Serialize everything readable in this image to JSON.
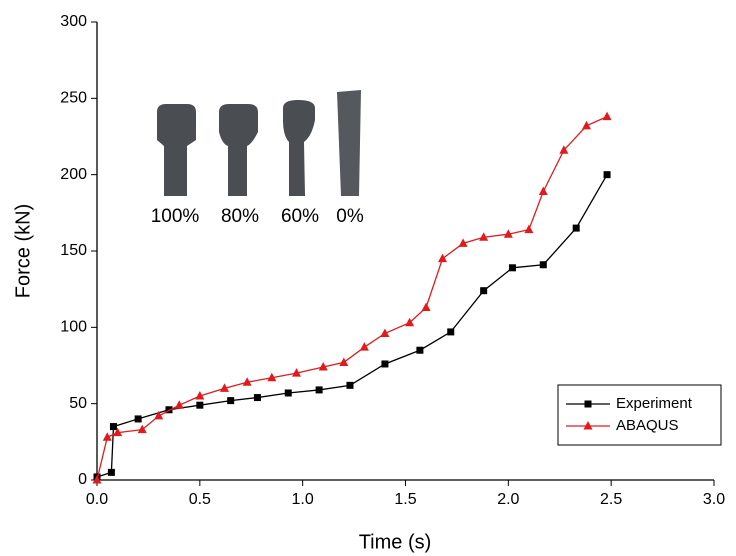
{
  "chart_data": {
    "type": "line",
    "x_label": "Time (s)",
    "y_label": "Force (kN)",
    "xlim": [
      0,
      3
    ],
    "ylim": [
      0,
      300
    ],
    "xticks": [
      {
        "value": 0,
        "label": "0.0"
      },
      {
        "value": 0.5,
        "label": "0.5"
      },
      {
        "value": 1,
        "label": "1.0"
      },
      {
        "value": 1.5,
        "label": "1.5"
      },
      {
        "value": 2,
        "label": "2.0"
      },
      {
        "value": 2.5,
        "label": "2.5"
      },
      {
        "value": 3,
        "label": "3.0"
      }
    ],
    "yticks": [
      0,
      50,
      100,
      150,
      200,
      250,
      300
    ],
    "grid": false,
    "legend": "bottom-right",
    "annotations": [
      "100%",
      "80%",
      "60%",
      "0%"
    ],
    "series": [
      {
        "name": "Experiment",
        "color": "#000000",
        "marker": "square",
        "x": [
          0,
          0.07,
          0.08,
          0.2,
          0.35,
          0.5,
          0.65,
          0.78,
          0.93,
          1.08,
          1.23,
          1.4,
          1.57,
          1.72,
          1.88,
          2.02,
          2.17,
          2.33,
          2.48
        ],
        "values": [
          2,
          5,
          35,
          40,
          46,
          49,
          52,
          54,
          57,
          59,
          62,
          76,
          85,
          97,
          124,
          139,
          141,
          165,
          200
        ]
      },
      {
        "name": "ABAQUS",
        "color": "#e31a1c",
        "marker": "triangle",
        "x": [
          0,
          0.05,
          0.1,
          0.22,
          0.3,
          0.4,
          0.5,
          0.62,
          0.73,
          0.85,
          0.97,
          1.1,
          1.2,
          1.3,
          1.4,
          1.52,
          1.6,
          1.68,
          1.78,
          1.88,
          2.0,
          2.1,
          2.17,
          2.27,
          2.38,
          2.48
        ],
        "values": [
          0,
          28,
          31,
          33,
          42,
          49,
          55,
          60,
          64,
          67,
          70,
          74,
          77,
          87,
          96,
          103,
          113,
          145,
          155,
          159,
          161,
          164,
          189,
          216,
          232,
          238
        ]
      }
    ]
  }
}
